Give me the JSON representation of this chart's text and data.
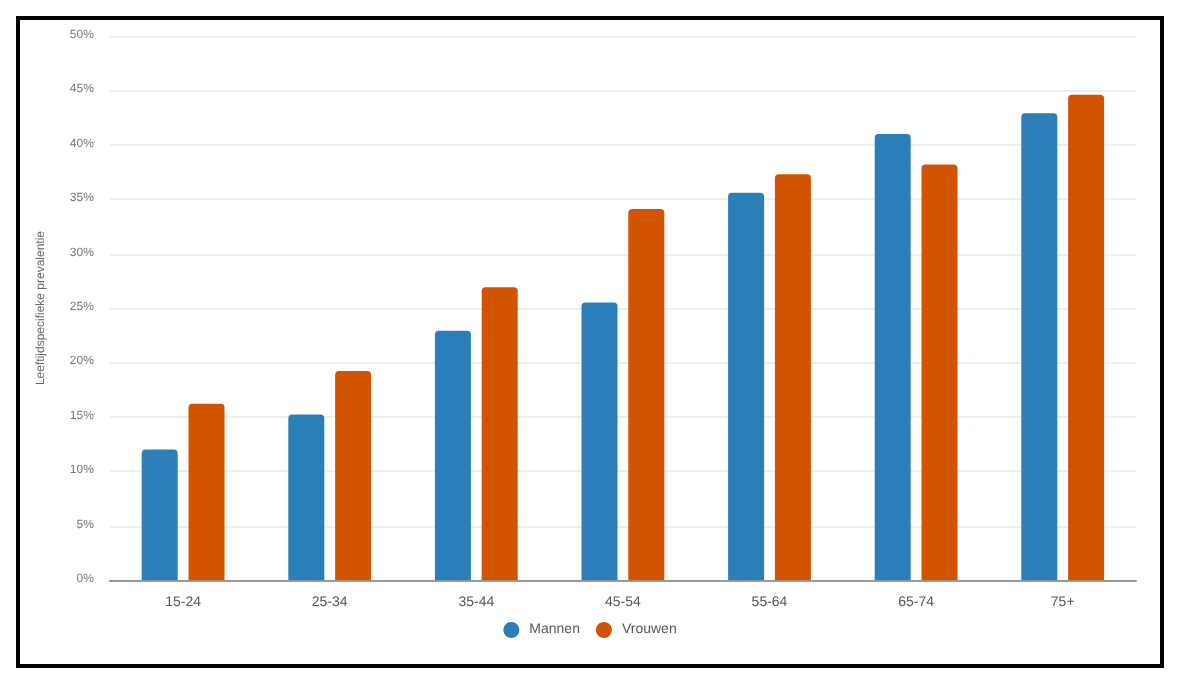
{
  "chart_data": {
    "type": "bar",
    "ylabel": "Leeftijdspecifieke prevalentie",
    "categories": [
      "15-24",
      "25-34",
      "35-44",
      "45-54",
      "55-64",
      "65-74",
      "75+"
    ],
    "series": [
      {
        "name": "Mannen",
        "color": "#2a7fb8",
        "values": [
          12.0,
          15.2,
          22.9,
          25.5,
          35.6,
          41.0,
          42.9
        ]
      },
      {
        "name": "Vrouwen",
        "color": "#d35400",
        "values": [
          16.2,
          19.2,
          26.9,
          34.1,
          37.3,
          38.2,
          44.6
        ]
      }
    ],
    "ylim": [
      0,
      50
    ],
    "yticks": [
      {
        "value": 0,
        "label": "0%"
      },
      {
        "value": 5,
        "label": "5%"
      },
      {
        "value": 10,
        "label": "10%"
      },
      {
        "value": 15,
        "label": "15%"
      },
      {
        "value": 20,
        "label": "20%"
      },
      {
        "value": 25,
        "label": "25%"
      },
      {
        "value": 30,
        "label": "30%"
      },
      {
        "value": 35,
        "label": "35%"
      },
      {
        "value": 40,
        "label": "40%"
      },
      {
        "value": 45,
        "label": "45%"
      },
      {
        "value": 50,
        "label": "50%"
      }
    ],
    "grid": "y",
    "legend": "bottom"
  }
}
